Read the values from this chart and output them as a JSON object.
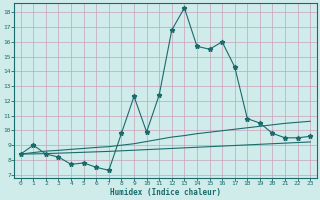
{
  "xlabel": "Humidex (Indice chaleur)",
  "xlim": [
    -0.5,
    23.5
  ],
  "ylim": [
    6.8,
    18.6
  ],
  "yticks": [
    7,
    8,
    9,
    10,
    11,
    12,
    13,
    14,
    15,
    16,
    17,
    18
  ],
  "xticks": [
    0,
    1,
    2,
    3,
    4,
    5,
    6,
    7,
    8,
    9,
    10,
    11,
    12,
    13,
    14,
    15,
    16,
    17,
    18,
    19,
    20,
    21,
    22,
    23
  ],
  "bg_color": "#d0ecea",
  "grid_color": "#c8a0b8",
  "line_color": "#1a6b6b",
  "line1_x": [
    0,
    1,
    2,
    3,
    4,
    5,
    6,
    7,
    8,
    9,
    10,
    11,
    12,
    13,
    14,
    15,
    16,
    17,
    18,
    19,
    20,
    21,
    22,
    23
  ],
  "line1_y": [
    8.4,
    9.0,
    8.4,
    8.2,
    7.7,
    7.8,
    7.5,
    7.3,
    9.8,
    12.3,
    9.9,
    12.4,
    16.8,
    18.3,
    15.7,
    15.5,
    16.0,
    14.3,
    10.8,
    10.5,
    9.8,
    9.5,
    9.5,
    9.6
  ],
  "line2_x": [
    0,
    1,
    2,
    3,
    4,
    5,
    6,
    7,
    8,
    9,
    10,
    11,
    12,
    13,
    14,
    15,
    16,
    17,
    18,
    19,
    20,
    21,
    22,
    23
  ],
  "line2_y": [
    8.4,
    8.5,
    8.6,
    8.65,
    8.72,
    8.78,
    8.85,
    8.9,
    9.0,
    9.1,
    9.25,
    9.4,
    9.55,
    9.65,
    9.78,
    9.88,
    9.98,
    10.08,
    10.18,
    10.28,
    10.38,
    10.48,
    10.55,
    10.62
  ],
  "line3_x": [
    0,
    1,
    2,
    3,
    4,
    5,
    6,
    7,
    8,
    9,
    10,
    11,
    12,
    13,
    14,
    15,
    16,
    17,
    18,
    19,
    20,
    21,
    22,
    23
  ],
  "line3_y": [
    8.4,
    8.41,
    8.43,
    8.46,
    8.49,
    8.52,
    8.55,
    8.58,
    8.62,
    8.66,
    8.7,
    8.74,
    8.78,
    8.82,
    8.86,
    8.9,
    8.94,
    8.98,
    9.02,
    9.06,
    9.1,
    9.14,
    9.18,
    9.22
  ]
}
